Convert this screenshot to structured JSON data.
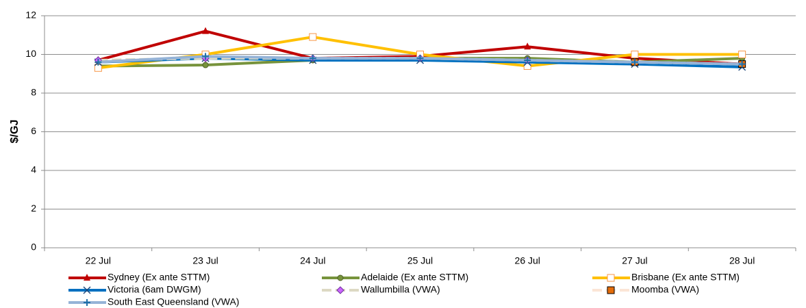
{
  "chart_data": {
    "type": "line",
    "y_label": "$/GJ",
    "categories": [
      "22 Jul",
      "23 Jul",
      "24 Jul",
      "25 Jul",
      "26 Jul",
      "27 Jul",
      "28 Jul"
    ],
    "ylim": [
      0,
      12
    ],
    "yticks": [
      0,
      2,
      4,
      6,
      8,
      10,
      12
    ],
    "grid": true,
    "series": [
      {
        "name": "Sydney (Ex ante STTM)",
        "color": "#c00000",
        "marker": "triangle",
        "values": [
          9.7,
          11.2,
          9.8,
          9.9,
          10.4,
          9.8,
          9.5
        ]
      },
      {
        "name": "Adelaide (Ex ante STTM)",
        "color": "#77933c",
        "marker": "circle",
        "values": [
          9.4,
          9.45,
          9.7,
          9.8,
          9.8,
          9.6,
          9.8
        ]
      },
      {
        "name": "Brisbane (Ex ante STTM)",
        "color": "#ffc000",
        "marker": "open-square",
        "values": [
          9.3,
          10.0,
          10.9,
          10.0,
          9.4,
          10.0,
          10.0
        ]
      },
      {
        "name": "Victoria (6am DWGM)",
        "color": "#0070c0",
        "marker": "x",
        "values": [
          9.6,
          9.8,
          9.7,
          9.7,
          9.6,
          9.5,
          9.35
        ]
      },
      {
        "name": "Wallumbilla (VWA)",
        "color": "#ddd9c3",
        "marker": "diamond",
        "dash": true,
        "values": [
          9.7,
          9.8,
          9.8,
          9.8,
          9.7,
          9.6,
          9.5
        ]
      },
      {
        "name": "Moomba (VWA)",
        "color": "#fbe5d6",
        "marker": "filled-square",
        "dash": true,
        "values": [
          null,
          null,
          null,
          null,
          null,
          9.6,
          9.5
        ]
      },
      {
        "name": "South East Queensland (VWA)",
        "color": "#95b3d7",
        "marker": "plus",
        "values": [
          9.6,
          9.9,
          9.8,
          9.8,
          9.7,
          9.6,
          9.5
        ]
      }
    ]
  }
}
